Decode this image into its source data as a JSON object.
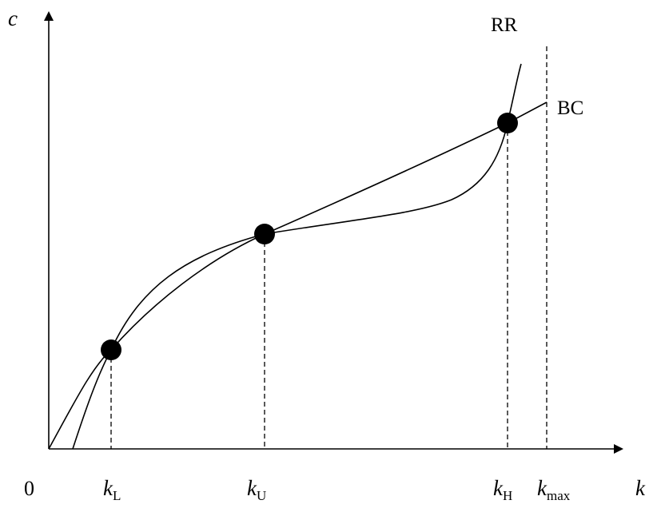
{
  "axes": {
    "y_label": "c",
    "x_label": "k",
    "origin_label": "0"
  },
  "curves": {
    "rr_label": "RR",
    "bc_label": "BC"
  },
  "markers": [
    {
      "main": "k",
      "sub": "L"
    },
    {
      "main": "k",
      "sub": "U"
    },
    {
      "main": "k",
      "sub": "H"
    },
    {
      "main": "k",
      "sub": "max"
    }
  ],
  "colors": {
    "ink": "#000000",
    "background": "#ffffff"
  }
}
